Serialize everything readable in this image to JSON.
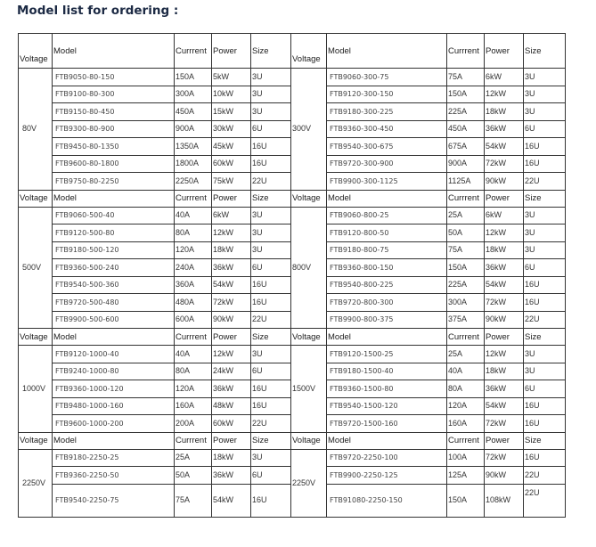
{
  "title": "Model list for ordering :",
  "headers": {
    "voltage": "Voltage",
    "model": "Model",
    "current": "Currrent",
    "power": "Power",
    "size": "Size"
  },
  "sections": [
    {
      "left": {
        "voltage": "80V",
        "rows": [
          [
            "FTB9050-80-150",
            "150A",
            "5kW",
            "3U"
          ],
          [
            "FTB9100-80-300",
            "300A",
            "10kW",
            "3U"
          ],
          [
            "FTB9150-80-450",
            "450A",
            "15kW",
            "3U"
          ],
          [
            "FTB9300-80-900",
            "900A",
            "30kW",
            "6U"
          ],
          [
            "FTB9450-80-1350",
            "1350A",
            "45kW",
            "16U"
          ],
          [
            "FTB9600-80-1800",
            "1800A",
            "60kW",
            "16U"
          ],
          [
            "FTB9750-80-2250",
            "2250A",
            "75kW",
            "22U"
          ]
        ]
      },
      "right": {
        "voltage": "300V",
        "rows": [
          [
            "FTB9060-300-75",
            "75A",
            "6kW",
            "3U"
          ],
          [
            "FTB9120-300-150",
            "150A",
            "12kW",
            "3U"
          ],
          [
            "FTB9180-300-225",
            "225A",
            "18kW",
            "3U"
          ],
          [
            "FTB9360-300-450",
            "450A",
            "36kW",
            "6U"
          ],
          [
            "FTB9540-300-675",
            "675A",
            "54kW",
            "16U"
          ],
          [
            "FTB9720-300-900",
            "900A",
            "72kW",
            "16U"
          ],
          [
            "FTB9900-300-1125",
            "1125A",
            "90kW",
            "22U"
          ]
        ]
      }
    },
    {
      "left": {
        "voltage": "500V",
        "rows": [
          [
            "FTB9060-500-40",
            "40A",
            "6kW",
            "3U"
          ],
          [
            "FTB9120-500-80",
            "80A",
            "12kW",
            "3U"
          ],
          [
            "FTB9180-500-120",
            "120A",
            "18kW",
            "3U"
          ],
          [
            "FTB9360-500-240",
            "240A",
            "36kW",
            "6U"
          ],
          [
            "FTB9540-500-360",
            "360A",
            "54kW",
            "16U"
          ],
          [
            "FTB9720-500-480",
            "480A",
            "72kW",
            "16U"
          ],
          [
            "FTB9900-500-600",
            "600A",
            "90kW",
            "22U"
          ]
        ]
      },
      "right": {
        "voltage": "800V",
        "rows": [
          [
            "FTB9060-800-25",
            "25A",
            "6kW",
            "3U"
          ],
          [
            "FTB9120-800-50",
            "50A",
            "12kW",
            "3U"
          ],
          [
            "FTB9180-800-75",
            "75A",
            "18kW",
            "3U"
          ],
          [
            "FTB9360-800-150",
            "150A",
            "36kW",
            "6U"
          ],
          [
            "FTB9540-800-225",
            "225A",
            "54kW",
            "16U"
          ],
          [
            "FTB9720-800-300",
            "300A",
            "72kW",
            "16U"
          ],
          [
            "FTB9900-800-375",
            "375A",
            "90kW",
            "22U"
          ]
        ]
      }
    },
    {
      "left": {
        "voltage": "1000V",
        "rows": [
          [
            "FTB9120-1000-40",
            "40A",
            "12kW",
            "3U"
          ],
          [
            "FTB9240-1000-80",
            "80A",
            "24kW",
            "6U"
          ],
          [
            "FTB9360-1000-120",
            "120A",
            "36kW",
            "16U"
          ],
          [
            "FTB9480-1000-160",
            "160A",
            "48kW",
            "16U"
          ],
          [
            "FTB9600-1000-200",
            "200A",
            "60kW",
            "22U"
          ]
        ]
      },
      "right": {
        "voltage": "1500V",
        "rows": [
          [
            "FTB9120-1500-25",
            "25A",
            "12kW",
            "3U"
          ],
          [
            "FTB9180-1500-40",
            "40A",
            "18kW",
            "3U"
          ],
          [
            "FTB9360-1500-80",
            "80A",
            "36kW",
            "6U"
          ],
          [
            "FTB9540-1500-120",
            "120A",
            "54kW",
            "16U"
          ],
          [
            "FTB9720-1500-160",
            "160A",
            "72kW",
            "16U"
          ]
        ]
      }
    },
    {
      "left": {
        "voltage": "2250V",
        "rows": [
          [
            "FTB9180-2250-25",
            "25A",
            "18kW",
            "3U"
          ],
          [
            "FTB9360-2250-50",
            "50A",
            "36kW",
            "6U"
          ],
          [
            "FTB9540-2250-75",
            "75A",
            "54kW",
            "16U"
          ]
        ]
      },
      "right": {
        "voltage": "2250V",
        "rows": [
          [
            "FTB9720-2250-100",
            "100A",
            "72kW",
            "16U"
          ],
          [
            "FTB9900-2250-125",
            "125A",
            "90kW",
            "22U"
          ],
          [
            "FTB91080-2250-150",
            "150A",
            "108kW",
            "22U"
          ]
        ]
      }
    }
  ]
}
